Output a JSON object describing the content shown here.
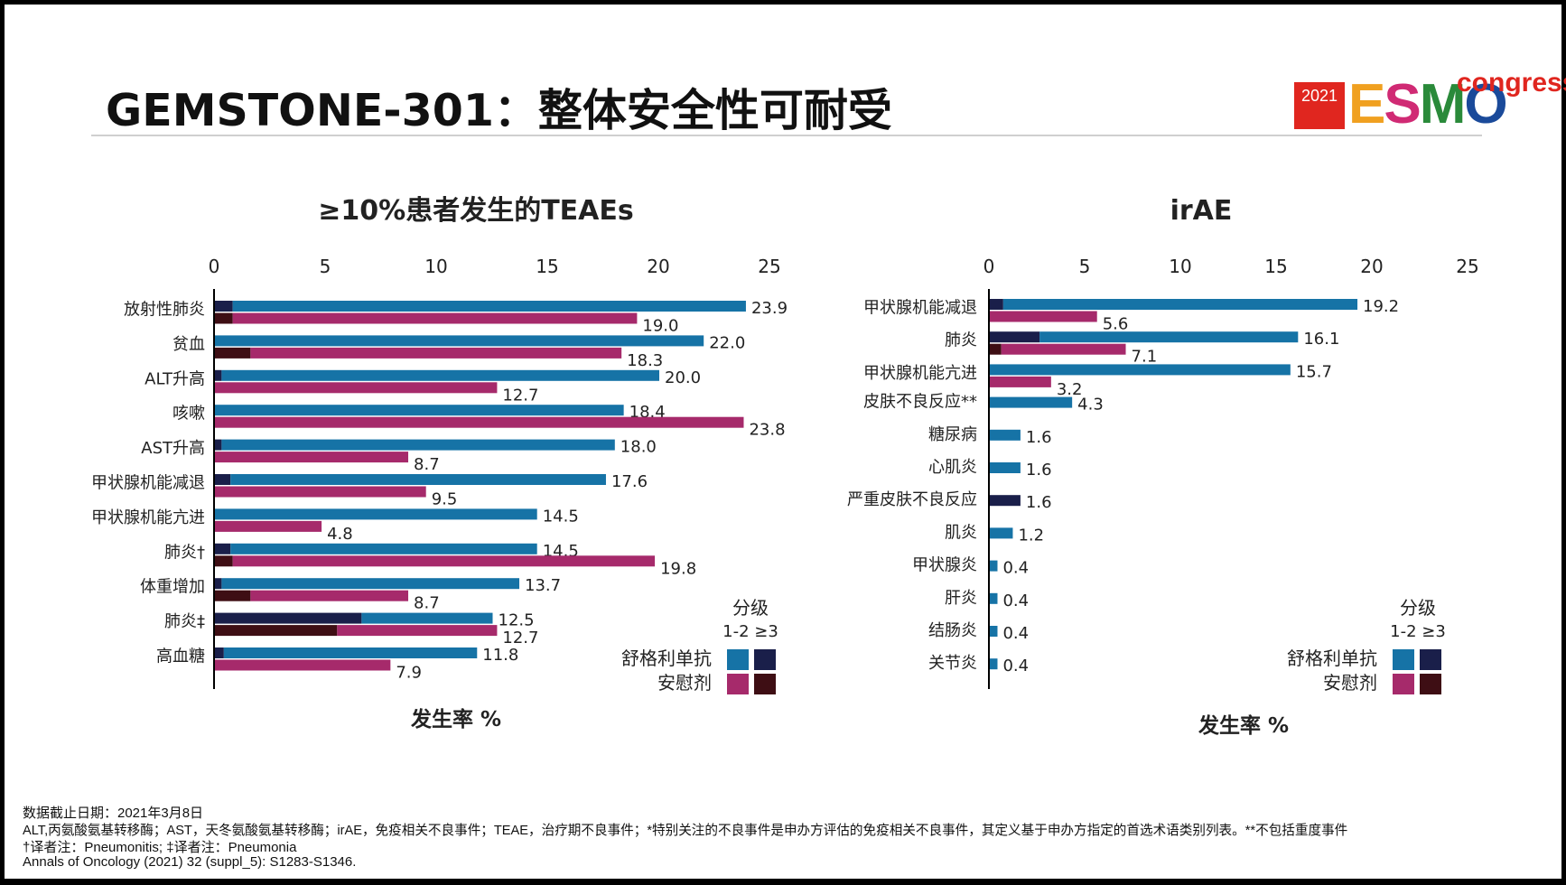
{
  "slide": {
    "title": "GEMSTONE-301：整体安全性可耐受",
    "logo": {
      "year": "2021",
      "brand_letters": [
        "E",
        "S",
        "M",
        "O"
      ],
      "suffix": "congress"
    },
    "footnotes": [
      "数据截止日期：2021年3月8日",
      "ALT,丙氨酸氨基转移酶；AST，天冬氨酸氨基转移酶；irAE，免疫相关不良事件；TEAE，治疗期不良事件；*特别关注的不良事件是申办方评估的免疫相关不良事件，其定义基于申办方指定的首选术语类别列表。**不包括重度事件",
      "†译者注：Pneumonitis; ‡译者注：Pneumonia",
      "Annals of Oncology (2021) 32 (suppl_5): S1283-S1346."
    ]
  },
  "colors": {
    "drug_low": "#1673a6",
    "drug_high": "#1a1f4a",
    "placebo_low": "#a62a6b",
    "placebo_high": "#3e0e14",
    "axis": "#000000"
  },
  "chart_data": [
    {
      "type": "bar",
      "orientation": "horizontal",
      "title": "≥10%患者发生的TEAEs",
      "xlabel": "发生率 %",
      "xlim": [
        0,
        25
      ],
      "xticks": [
        0,
        5,
        10,
        15,
        20,
        25
      ],
      "legend": {
        "title": "分级",
        "grades": "1-2 ≥3",
        "series_labels": [
          "舒格利单抗",
          "安慰剂"
        ],
        "position": "bottom-right"
      },
      "categories": [
        "放射性肺炎",
        "贫血",
        "ALT升高",
        "咳嗽",
        "AST升高",
        "甲状腺机能减退",
        "甲状腺机能亢进",
        "肺炎†",
        "体重增加",
        "肺炎‡",
        "高血糖"
      ],
      "series": [
        {
          "name": "舒格利单抗",
          "values": [
            23.9,
            22.0,
            20.0,
            18.4,
            18.0,
            17.6,
            14.5,
            14.5,
            13.7,
            12.5,
            11.8
          ],
          "labels": [
            "23.9",
            "22.0",
            "20.0",
            "18.4",
            "18.0",
            "17.6",
            "14.5",
            "14.5",
            "13.7",
            "12.5",
            "11.8"
          ],
          "grade3_values": [
            0.8,
            0,
            0.3,
            0,
            0.3,
            0.7,
            0,
            0.7,
            0.3,
            6.6,
            0.4
          ]
        },
        {
          "name": "安慰剂",
          "values": [
            19.0,
            18.3,
            12.7,
            23.8,
            8.7,
            9.5,
            4.8,
            19.8,
            8.7,
            12.7,
            7.9
          ],
          "labels": [
            "19.0",
            "18.3",
            "12.7",
            "23.8",
            "8.7",
            "9.5",
            "4.8",
            "19.8",
            "8.7",
            "12.7",
            "7.9"
          ],
          "grade3_values": [
            0.8,
            1.6,
            0,
            0,
            0,
            0,
            0,
            0.8,
            1.6,
            5.5,
            0
          ]
        }
      ]
    },
    {
      "type": "bar",
      "orientation": "horizontal",
      "title": "irAE",
      "xlabel": "发生率 %",
      "xlim": [
        0,
        25
      ],
      "xticks": [
        0,
        5,
        10,
        15,
        20,
        25
      ],
      "legend": {
        "title": "分级",
        "grades": "1-2 ≥3",
        "series_labels": [
          "舒格利单抗",
          "安慰剂"
        ],
        "position": "bottom-right"
      },
      "categories": [
        "甲状腺机能减退",
        "肺炎",
        "甲状腺机能亢进",
        "皮肤不良反应**",
        "糖尿病",
        "心肌炎",
        "严重皮肤不良反应",
        "肌炎",
        "甲状腺炎",
        "肝炎",
        "结肠炎",
        "关节炎"
      ],
      "series": [
        {
          "name": "舒格利单抗",
          "values": [
            19.2,
            16.1,
            15.7,
            4.3,
            1.6,
            1.6,
            1.6,
            1.2,
            0.4,
            0.4,
            0.4,
            0.4
          ],
          "labels": [
            "19.2",
            "16.1",
            "15.7",
            "4.3",
            "1.6",
            "1.6",
            "1.6",
            "1.2",
            "0.4",
            "0.4",
            "0.4",
            "0.4"
          ],
          "grade3_values": [
            0.7,
            2.6,
            0,
            0,
            0,
            0,
            1.6,
            0,
            0,
            0,
            0,
            0
          ]
        },
        {
          "name": "安慰剂",
          "values": [
            5.6,
            7.1,
            3.2,
            null,
            null,
            null,
            null,
            null,
            null,
            null,
            null,
            null
          ],
          "labels": [
            "5.6",
            "7.1",
            "3.2",
            null,
            null,
            null,
            null,
            null,
            null,
            null,
            null,
            null
          ],
          "grade3_values": [
            0,
            0.6,
            0,
            null,
            null,
            null,
            null,
            null,
            null,
            null,
            null,
            null
          ]
        }
      ]
    }
  ]
}
